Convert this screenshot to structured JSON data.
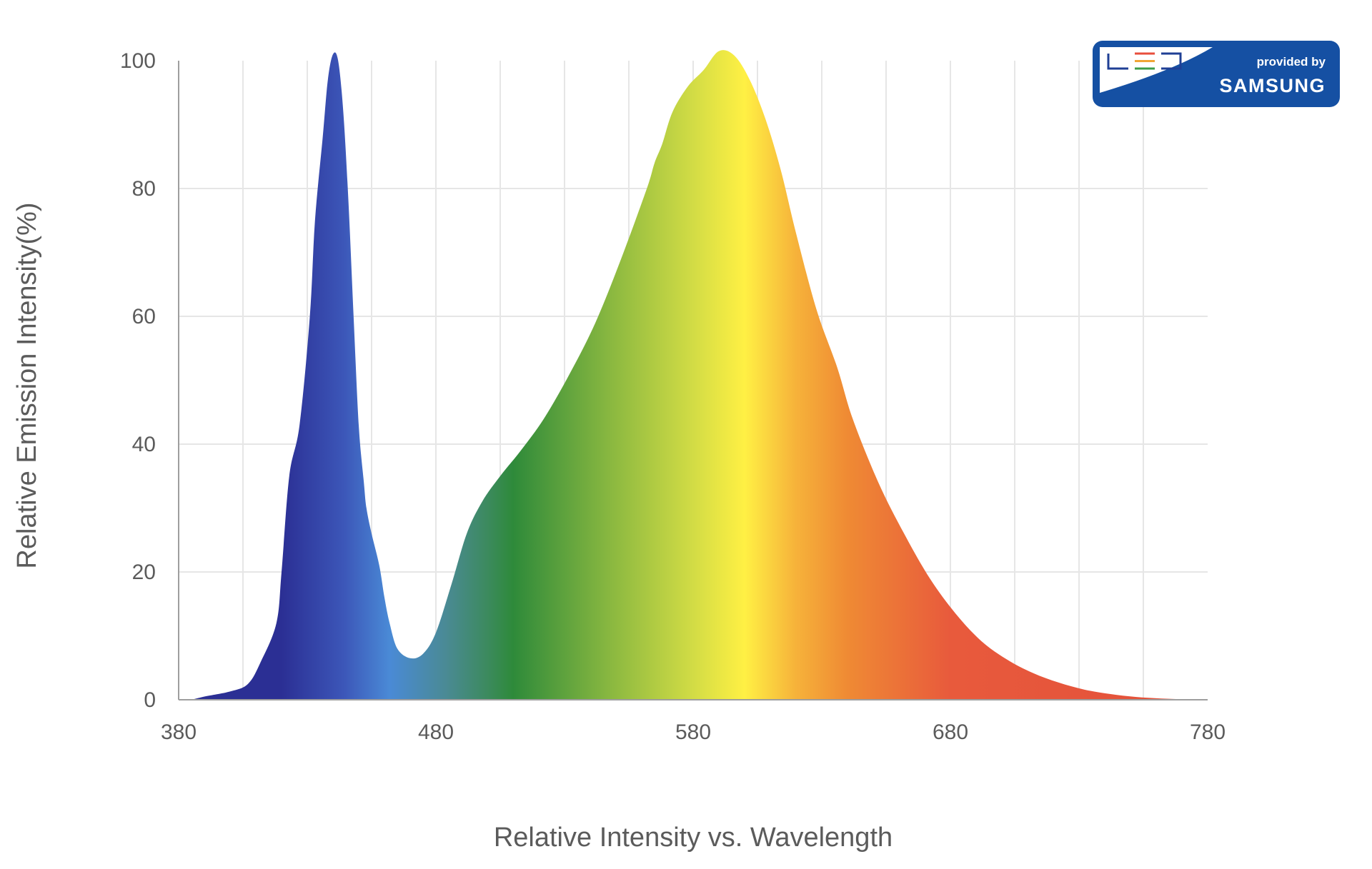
{
  "chart_data": {
    "type": "area",
    "title": "",
    "xlabel": "Relative Intensity vs. Wavelength",
    "ylabel": "Relative Emission Intensity(%)",
    "xlim": [
      380,
      780
    ],
    "ylim": [
      0,
      100
    ],
    "x_ticks": [
      380,
      480,
      580,
      680,
      780
    ],
    "y_ticks": [
      0,
      20,
      40,
      60,
      80,
      100
    ],
    "grid": true,
    "series": [
      {
        "x": [
          385,
          390,
          400,
          407,
          412,
          418,
          420,
          423,
          427,
          431,
          433,
          436,
          438,
          440,
          442,
          444,
          446,
          448,
          450,
          452,
          453,
          455,
          458,
          460,
          462,
          465,
          470,
          475,
          480,
          486,
          492,
          498,
          505,
          513,
          522,
          532,
          542,
          552,
          562,
          565,
          568,
          572,
          578,
          584,
          590,
          596,
          602,
          608,
          614,
          620,
          628,
          636,
          642,
          652,
          662,
          672,
          682,
          692,
          702,
          712,
          722,
          732,
          742,
          752,
          762,
          772,
          778
        ],
        "y": [
          0,
          0.5,
          1.3,
          2.5,
          6,
          12,
          20,
          35,
          43,
          60,
          75,
          88,
          97,
          101,
          100,
          92,
          78,
          60,
          43,
          34,
          30,
          26,
          21,
          16,
          12,
          8,
          6.5,
          7.2,
          10.5,
          18,
          26,
          31,
          35,
          39,
          44,
          51,
          59,
          69,
          80,
          84,
          87,
          92,
          96,
          98.5,
          101.5,
          100.8,
          97,
          91,
          83,
          73,
          61,
          52,
          44,
          34,
          26,
          19,
          13.5,
          9.2,
          6.3,
          4.2,
          2.7,
          1.6,
          0.9,
          0.45,
          0.2,
          0.08,
          0
        ]
      }
    ]
  },
  "badge": {
    "logo_text": "LED",
    "line1": "provided by",
    "line2": "SAMSUNG"
  },
  "colors": {
    "background": "#ffffff",
    "grid": "#e6e6e6",
    "axis": "#9e9e9e",
    "badge_blue": "#1550a3",
    "spectrum": [
      "#2b2f94",
      "#3c56b8",
      "#4a8ad6",
      "#3c8a5e",
      "#2e8a3a",
      "#8ab840",
      "#d2dc45",
      "#fff044",
      "#f6b23a",
      "#ef8a34",
      "#e85a3c",
      "#e3503a"
    ]
  }
}
